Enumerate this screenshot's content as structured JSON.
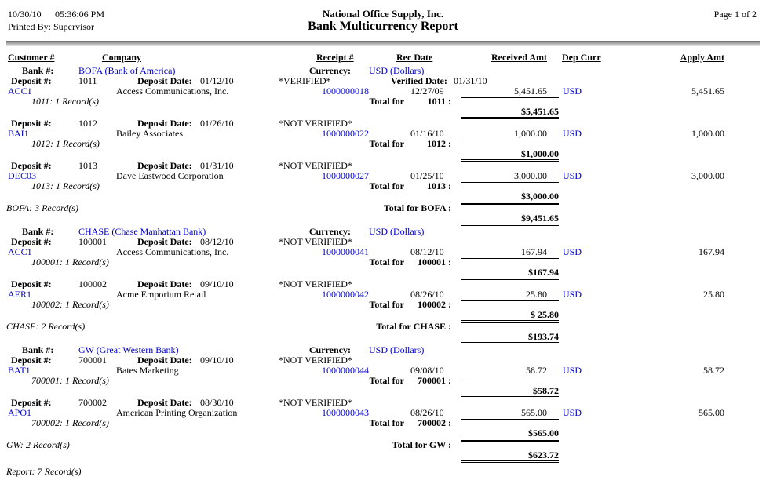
{
  "page_header": {
    "date": "10/30/10",
    "time": "05:36:06 PM",
    "printed_by": "Printed By: Supervisor",
    "company_name": "National Office Supply, Inc.",
    "report_title": "Bank Multicurrency Report",
    "page_info": "Page 1 of 2"
  },
  "columns": {
    "customer": "Customer #",
    "company": "Company",
    "receipt": "Receipt #",
    "rec_date": "Rec Date",
    "received_amt": "Received Amt",
    "dep_curr": "Dep Curr",
    "apply_amt": "Apply Amt"
  },
  "labels": {
    "bank": "Bank #:",
    "currency": "Currency:",
    "deposit": "Deposit #:",
    "deposit_date": "Deposit Date:",
    "verified_date": "Verified Date:",
    "total_for": "Total for"
  },
  "colors": {
    "link_blue": "#0000cc",
    "text_black": "#000000"
  },
  "banks": [
    {
      "name": "BOFA (Bank of America)",
      "currency": "USD (Dollars)",
      "deposits": [
        {
          "number": "1011",
          "date": "01/12/10",
          "status": "*VERIFIED*",
          "verified_date": "01/31/10",
          "details": [
            {
              "customer": "ACC1",
              "company": "Access Communications, Inc.",
              "receipt": "1000000018",
              "rec_date": "12/27/09",
              "received": "5,451.65",
              "dep_curr": "USD",
              "apply": "5,451.65"
            }
          ],
          "records": "1011: 1 Record(s)",
          "total_key": "1011 :",
          "total": "$5,451.65"
        },
        {
          "number": "1012",
          "date": "01/26/10",
          "status": "*NOT VERIFIED*",
          "details": [
            {
              "customer": "BAI1",
              "company": "Bailey Associates",
              "receipt": "1000000022",
              "rec_date": "01/16/10",
              "received": "1,000.00",
              "dep_curr": "USD",
              "apply": "1,000.00"
            }
          ],
          "records": "1012: 1 Record(s)",
          "total_key": "1012 :",
          "total": "$1,000.00"
        },
        {
          "number": "1013",
          "date": "01/31/10",
          "status": "*NOT VERIFIED*",
          "details": [
            {
              "customer": "DEC03",
              "company": "Dave Eastwood Corporation",
              "receipt": "1000000027",
              "rec_date": "01/25/10",
              "received": "3,000.00",
              "dep_curr": "USD",
              "apply": "3,000.00"
            }
          ],
          "records": "1013: 1 Record(s)",
          "total_key": "1013 :",
          "total": "$3,000.00"
        }
      ],
      "records": "BOFA: 3 Record(s)",
      "total_label": "Total for BOFA :",
      "total": "$9,451.65"
    },
    {
      "name": "CHASE (Chase Manhattan Bank)",
      "currency": "USD (Dollars)",
      "deposits": [
        {
          "number": "100001",
          "date": "08/12/10",
          "status": "*NOT VERIFIED*",
          "details": [
            {
              "customer": "ACC1",
              "company": "Access Communications, Inc.",
              "receipt": "1000000041",
              "rec_date": "08/12/10",
              "received": "167.94",
              "dep_curr": "USD",
              "apply": "167.94"
            }
          ],
          "records": "100001: 1 Record(s)",
          "total_key": "100001 :",
          "total": "$167.94"
        },
        {
          "number": "100002",
          "date": "09/10/10",
          "status": "*NOT VERIFIED*",
          "details": [
            {
              "customer": "AER1",
              "company": "Acme Emporium Retail",
              "receipt": "1000000042",
              "rec_date": "08/26/10",
              "received": "25.80",
              "dep_curr": "USD",
              "apply": "25.80"
            }
          ],
          "records": "100002: 1 Record(s)",
          "total_key": "100002 :",
          "total": "$ 25.80"
        }
      ],
      "records": "CHASE: 2 Record(s)",
      "total_label": "Total for CHASE :",
      "total": "$193.74"
    },
    {
      "name": "GW (Great Western Bank)",
      "currency": "USD (Dollars)",
      "deposits": [
        {
          "number": "700001",
          "date": "09/10/10",
          "status": "*NOT VERIFIED*",
          "details": [
            {
              "customer": "BAT1",
              "company": "Bates Marketing",
              "receipt": "1000000044",
              "rec_date": "09/08/10",
              "received": "58.72",
              "dep_curr": "USD",
              "apply": "58.72"
            }
          ],
          "records": "700001: 1 Record(s)",
          "total_key": "700001 :",
          "total": "$58.72"
        },
        {
          "number": "700002",
          "date": "08/30/10",
          "status": "*NOT VERIFIED*",
          "details": [
            {
              "customer": "APO1",
              "company": "American Printing Organization",
              "receipt": "1000000043",
              "rec_date": "08/26/10",
              "received": "565.00",
              "dep_curr": "USD",
              "apply": "565.00"
            }
          ],
          "records": "700002: 1 Record(s)",
          "total_key": "700002 :",
          "total": "$565.00"
        }
      ],
      "records": "GW: 2 Record(s)",
      "total_label": "Total for GW :",
      "total": "$623.72"
    }
  ],
  "report_footer": "Report: 7 Record(s)"
}
